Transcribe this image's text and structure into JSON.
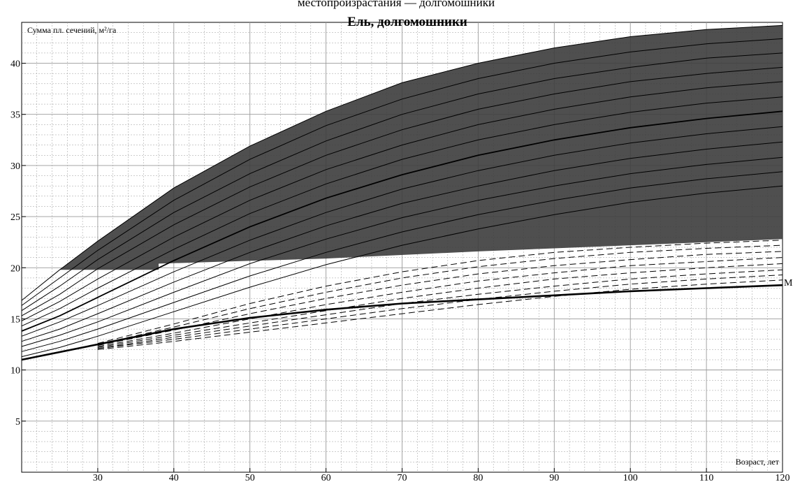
{
  "header": {
    "cut_caption": "местопроизрастания — долгомошники"
  },
  "chart_data": {
    "type": "line",
    "title": "Ель, долгомошники",
    "xlabel": "Возраст, лет",
    "ylabel": "Сумма пл. сечений, м²/га",
    "xlim": [
      20,
      120
    ],
    "ylim": [
      0,
      44
    ],
    "x_ticks": [
      30,
      40,
      50,
      60,
      70,
      80,
      90,
      100,
      110,
      120
    ],
    "y_ticks": [
      5,
      10,
      15,
      20,
      25,
      30,
      35,
      40
    ],
    "grid": true,
    "colors": {
      "shaded_zone": "#3c3c3c",
      "lines": "#000000",
      "grid": "#9a9a9a"
    },
    "shaded_zone": {
      "upper": {
        "x": [
          25,
          30,
          40,
          50,
          60,
          70,
          80,
          90,
          100,
          110,
          120
        ],
        "y": [
          19.8,
          22.6,
          27.8,
          31.9,
          35.3,
          38.1,
          40.0,
          41.5,
          42.6,
          43.3,
          43.7
        ]
      },
      "lower": {
        "x": [
          25,
          38,
          38,
          60,
          80,
          100,
          120
        ],
        "y": [
          19.8,
          19.8,
          20.4,
          20.9,
          21.6,
          22.2,
          22.8
        ]
      }
    },
    "series_solid": [
      {
        "values": [
          [
            20,
            16.8
          ],
          [
            25,
            19.8
          ],
          [
            30,
            22.6
          ],
          [
            40,
            27.8
          ],
          [
            50,
            31.9
          ],
          [
            60,
            35.3
          ],
          [
            70,
            38.1
          ],
          [
            80,
            40.0
          ],
          [
            90,
            41.5
          ],
          [
            100,
            42.6
          ],
          [
            110,
            43.3
          ],
          [
            120,
            43.7
          ]
        ]
      },
      {
        "values": [
          [
            20,
            16.3
          ],
          [
            25,
            19.0
          ],
          [
            30,
            21.7
          ],
          [
            40,
            26.6
          ],
          [
            50,
            30.6
          ],
          [
            60,
            33.9
          ],
          [
            70,
            36.5
          ],
          [
            80,
            38.5
          ],
          [
            90,
            40.0
          ],
          [
            100,
            41.1
          ],
          [
            110,
            41.9
          ],
          [
            120,
            42.4
          ]
        ]
      },
      {
        "values": [
          [
            20,
            15.8
          ],
          [
            25,
            18.2
          ],
          [
            30,
            20.8
          ],
          [
            40,
            25.4
          ],
          [
            50,
            29.2
          ],
          [
            60,
            32.4
          ],
          [
            70,
            35.0
          ],
          [
            80,
            37.0
          ],
          [
            90,
            38.5
          ],
          [
            100,
            39.6
          ],
          [
            110,
            40.5
          ],
          [
            120,
            41.0
          ]
        ]
      },
      {
        "values": [
          [
            20,
            15.3
          ],
          [
            25,
            17.4
          ],
          [
            30,
            19.9
          ],
          [
            40,
            24.2
          ],
          [
            50,
            27.9
          ],
          [
            60,
            31.0
          ],
          [
            70,
            33.5
          ],
          [
            80,
            35.5
          ],
          [
            90,
            37.0
          ],
          [
            100,
            38.2
          ],
          [
            110,
            39.0
          ],
          [
            120,
            39.6
          ]
        ]
      },
      {
        "values": [
          [
            20,
            14.8
          ],
          [
            25,
            16.7
          ],
          [
            30,
            18.9
          ],
          [
            40,
            23.0
          ],
          [
            50,
            26.6
          ],
          [
            60,
            29.6
          ],
          [
            70,
            32.0
          ],
          [
            80,
            34.0
          ],
          [
            90,
            35.5
          ],
          [
            100,
            36.7
          ],
          [
            110,
            37.6
          ],
          [
            120,
            38.2
          ]
        ]
      },
      {
        "values": [
          [
            20,
            14.3
          ],
          [
            25,
            16.0
          ],
          [
            30,
            18.0
          ],
          [
            40,
            21.8
          ],
          [
            50,
            25.3
          ],
          [
            60,
            28.2
          ],
          [
            70,
            30.6
          ],
          [
            80,
            32.5
          ],
          [
            90,
            34.0
          ],
          [
            100,
            35.2
          ],
          [
            110,
            36.1
          ],
          [
            120,
            36.7
          ]
        ]
      },
      {
        "values": [
          [
            20,
            13.8
          ],
          [
            25,
            15.3
          ],
          [
            30,
            17.1
          ],
          [
            40,
            20.7
          ],
          [
            50,
            24.0
          ],
          [
            60,
            26.8
          ],
          [
            70,
            29.1
          ],
          [
            80,
            31.0
          ],
          [
            90,
            32.5
          ],
          [
            100,
            33.7
          ],
          [
            110,
            34.6
          ],
          [
            120,
            35.3
          ]
        ]
      },
      {
        "values": [
          [
            20,
            13.3
          ],
          [
            25,
            14.7
          ],
          [
            30,
            16.3
          ],
          [
            40,
            19.6
          ],
          [
            50,
            22.7
          ],
          [
            60,
            25.4
          ],
          [
            70,
            27.7
          ],
          [
            80,
            29.5
          ],
          [
            90,
            31.0
          ],
          [
            100,
            32.2
          ],
          [
            110,
            33.1
          ],
          [
            120,
            33.8
          ]
        ]
      },
      {
        "values": [
          [
            20,
            12.8
          ],
          [
            25,
            14.0
          ],
          [
            30,
            15.5
          ],
          [
            40,
            18.6
          ],
          [
            50,
            21.5
          ],
          [
            60,
            24.1
          ],
          [
            70,
            26.3
          ],
          [
            80,
            28.0
          ],
          [
            90,
            29.5
          ],
          [
            100,
            30.7
          ],
          [
            110,
            31.6
          ],
          [
            120,
            32.3
          ]
        ]
      },
      {
        "values": [
          [
            20,
            12.3
          ],
          [
            25,
            13.4
          ],
          [
            30,
            14.7
          ],
          [
            40,
            17.6
          ],
          [
            50,
            20.4
          ],
          [
            60,
            22.8
          ],
          [
            70,
            24.9
          ],
          [
            80,
            26.6
          ],
          [
            90,
            28.0
          ],
          [
            100,
            29.2
          ],
          [
            110,
            30.1
          ],
          [
            120,
            30.8
          ]
        ]
      },
      {
        "values": [
          [
            20,
            11.8
          ],
          [
            25,
            12.8
          ],
          [
            30,
            14.0
          ],
          [
            40,
            16.6
          ],
          [
            50,
            19.2
          ],
          [
            60,
            21.5
          ],
          [
            70,
            23.5
          ],
          [
            80,
            25.2
          ],
          [
            90,
            26.6
          ],
          [
            100,
            27.8
          ],
          [
            110,
            28.7
          ],
          [
            120,
            29.4
          ]
        ]
      },
      {
        "values": [
          [
            20,
            11.3
          ],
          [
            25,
            12.2
          ],
          [
            30,
            13.3
          ],
          [
            40,
            15.7
          ],
          [
            50,
            18.1
          ],
          [
            60,
            20.3
          ],
          [
            70,
            22.2
          ],
          [
            80,
            23.8
          ],
          [
            90,
            25.2
          ],
          [
            100,
            26.4
          ],
          [
            110,
            27.3
          ],
          [
            120,
            28.0
          ]
        ]
      }
    ],
    "series_dashed": [
      {
        "values": [
          [
            30,
            12.6
          ],
          [
            40,
            14.5
          ],
          [
            50,
            16.5
          ],
          [
            60,
            18.2
          ],
          [
            70,
            19.6
          ],
          [
            80,
            20.7
          ],
          [
            90,
            21.5
          ],
          [
            100,
            22.0
          ],
          [
            110,
            22.4
          ],
          [
            120,
            22.7
          ]
        ]
      },
      {
        "values": [
          [
            30,
            12.5
          ],
          [
            40,
            14.2
          ],
          [
            50,
            16.0
          ],
          [
            60,
            17.6
          ],
          [
            70,
            19.0
          ],
          [
            80,
            20.1
          ],
          [
            90,
            20.9
          ],
          [
            100,
            21.5
          ],
          [
            110,
            21.9
          ],
          [
            120,
            22.2
          ]
        ]
      },
      {
        "values": [
          [
            30,
            12.4
          ],
          [
            40,
            13.9
          ],
          [
            50,
            15.5
          ],
          [
            60,
            17.0
          ],
          [
            70,
            18.3
          ],
          [
            80,
            19.4
          ],
          [
            90,
            20.2
          ],
          [
            100,
            20.8
          ],
          [
            110,
            21.3
          ],
          [
            120,
            21.6
          ]
        ]
      },
      {
        "values": [
          [
            30,
            12.3
          ],
          [
            40,
            13.6
          ],
          [
            50,
            15.0
          ],
          [
            60,
            16.4
          ],
          [
            70,
            17.6
          ],
          [
            80,
            18.7
          ],
          [
            90,
            19.5
          ],
          [
            100,
            20.2
          ],
          [
            110,
            20.6
          ],
          [
            120,
            21.0
          ]
        ]
      },
      {
        "values": [
          [
            30,
            12.2
          ],
          [
            40,
            13.4
          ],
          [
            50,
            14.6
          ],
          [
            60,
            15.8
          ],
          [
            70,
            17.0
          ],
          [
            80,
            18.0
          ],
          [
            90,
            18.9
          ],
          [
            100,
            19.5
          ],
          [
            110,
            20.0
          ],
          [
            120,
            20.4
          ]
        ]
      },
      {
        "values": [
          [
            30,
            12.1
          ],
          [
            40,
            13.2
          ],
          [
            50,
            14.3
          ],
          [
            60,
            15.4
          ],
          [
            70,
            16.5
          ],
          [
            80,
            17.4
          ],
          [
            90,
            18.2
          ],
          [
            100,
            18.9
          ],
          [
            110,
            19.4
          ],
          [
            120,
            19.8
          ]
        ]
      },
      {
        "values": [
          [
            30,
            12.1
          ],
          [
            40,
            13.0
          ],
          [
            50,
            14.0
          ],
          [
            60,
            15.0
          ],
          [
            70,
            16.0
          ],
          [
            80,
            16.9
          ],
          [
            90,
            17.7
          ],
          [
            100,
            18.4
          ],
          [
            110,
            18.9
          ],
          [
            120,
            19.3
          ]
        ]
      },
      {
        "values": [
          [
            30,
            12.0
          ],
          [
            40,
            12.8
          ],
          [
            50,
            13.7
          ],
          [
            60,
            14.6
          ],
          [
            70,
            15.5
          ],
          [
            80,
            16.4
          ],
          [
            90,
            17.2
          ],
          [
            100,
            17.9
          ],
          [
            110,
            18.4
          ],
          [
            120,
            18.8
          ]
        ]
      }
    ],
    "series_bold": [
      {
        "name": "M",
        "values": [
          [
            20,
            11.0
          ],
          [
            30,
            12.5
          ],
          [
            40,
            14.0
          ],
          [
            50,
            15.1
          ],
          [
            60,
            15.9
          ],
          [
            70,
            16.5
          ],
          [
            80,
            16.9
          ],
          [
            90,
            17.3
          ],
          [
            100,
            17.7
          ],
          [
            110,
            18.0
          ],
          [
            120,
            18.3
          ]
        ]
      }
    ]
  }
}
